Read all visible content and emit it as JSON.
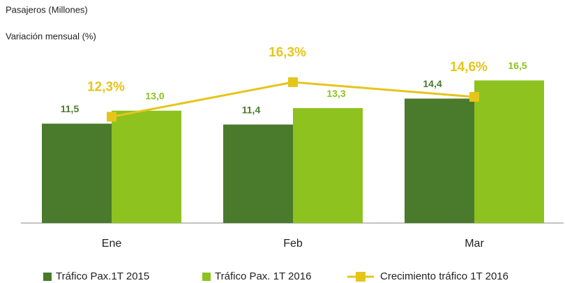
{
  "chart_data": {
    "type": "bar-line",
    "title": "Pasajeros (Millones)",
    "subtitle": "Variación mensual (%)",
    "categories": [
      "Ene",
      "Feb",
      "Mar"
    ],
    "series": [
      {
        "name": "Tráfico Pax.1T 2015",
        "color": "#4a7a2b",
        "values": [
          11.5,
          11.4,
          14.4
        ],
        "value_labels": [
          "11,5",
          "11,4",
          "14,4"
        ]
      },
      {
        "name": "Tráfico Pax. 1T 2016",
        "color": "#8dc21f",
        "values": [
          13.0,
          13.3,
          16.5
        ],
        "value_labels": [
          "13,0",
          "13,3",
          "16,5"
        ]
      },
      {
        "name": "Crecimiento tráfico 1T 2016",
        "color": "#e5c51a",
        "axis": "y2",
        "values": [
          12.3,
          16.3,
          14.6
        ],
        "value_labels": [
          "12,3%",
          "16,3%",
          "14,6%"
        ]
      }
    ],
    "ylim": [
      0,
      20
    ],
    "y2lim": [
      0,
      20
    ],
    "legend": "bottom"
  }
}
